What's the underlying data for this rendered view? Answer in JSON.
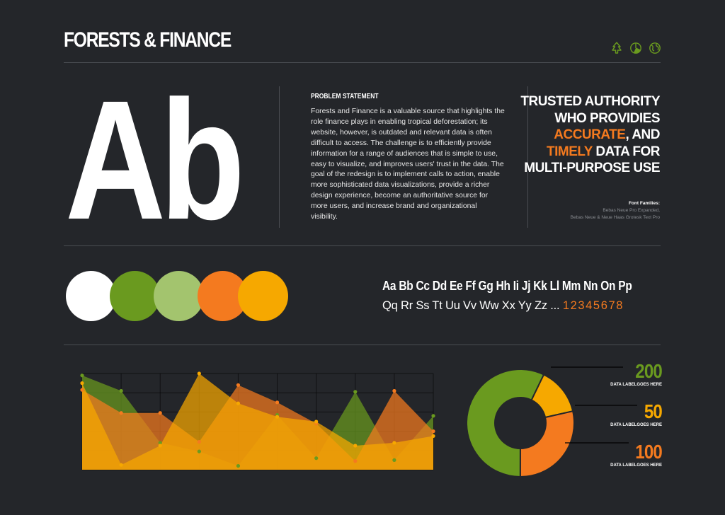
{
  "header": {
    "title": "FORESTS & FINANCE",
    "icons": [
      "tree-icon",
      "pie-chart-icon",
      "globe-icon"
    ]
  },
  "hero": {
    "glyph": "Ab"
  },
  "problem": {
    "heading": "PROBLEM STATEMENT",
    "body": "Forests and Finance is a valuable source that highlights the role finance plays in enabling tropical deforestation; its website, however, is outdated and relevant data is often difficult to access. The challenge is to efficiently provide information for a range of audiences that is simple to use, easy to visualize, and improves users' trust in the data. The goal of the redesign is to implement calls to action, enable more sophisticated data visualizations, provide a richer design experience, become an authoritative source for more users, and increase brand and organizational visibility."
  },
  "tagline": {
    "line1": "TRUSTED AUTHORITY",
    "line2": "WHO PROVIDIES",
    "accent1": "ACCURATE",
    "line3_rest": ", AND",
    "accent2": "TIMELY",
    "line4_rest": " DATA FOR",
    "line5": "MULTI-PURPOSE USE"
  },
  "fonts": {
    "label": "Font Families:",
    "line1": "Bebas Neue Pro Expanded,",
    "line2": "Bebas Neue  & Neue Haas Grotesk Text Pro"
  },
  "palette": [
    "#ffffff",
    "#6a9a1f",
    "#a3c46e",
    "#f47a1f",
    "#f6a800"
  ],
  "alphabet": {
    "row1": "Aa Bb Cc Dd Ee Ff Gg Hh Ii Jj Kk Ll Mm Nn On Pp",
    "row2": "Qq Rr Ss Tt Uu Vv Ww Xx Yy Zz ...",
    "numbers": "12345678"
  },
  "chart_data": [
    {
      "type": "area",
      "title": "",
      "x": [
        1,
        2,
        3,
        4,
        5,
        6,
        7,
        8,
        9,
        10
      ],
      "ylim": [
        0,
        10
      ],
      "grid": true,
      "series": [
        {
          "values": [
            9.8,
            8.2,
            2.8,
            1.9,
            0.4,
            5.7,
            1.2,
            8.1,
            1.0,
            5.6
          ],
          "color": "#6a9a1f"
        },
        {
          "values": [
            8.3,
            5.9,
            5.9,
            2.9,
            8.8,
            7.0,
            4.8,
            0.9,
            8.2,
            4.0
          ],
          "color": "#f47a1f"
        },
        {
          "values": [
            9.0,
            0.5,
            2.5,
            10.0,
            6.9,
            5.5,
            5.0,
            2.5,
            2.8,
            3.5
          ],
          "color": "#f6a800"
        }
      ]
    },
    {
      "type": "pie",
      "title": "",
      "series": [
        {
          "value": 200,
          "label": "DATA LABELGOES HERE",
          "color": "#6a9a1f"
        },
        {
          "value": 50,
          "label": "DATA LABELGOES HERE",
          "color": "#f6a800"
        },
        {
          "value": 100,
          "label": "DATA LABELGOES HERE",
          "color": "#f47a1f"
        }
      ]
    }
  ]
}
